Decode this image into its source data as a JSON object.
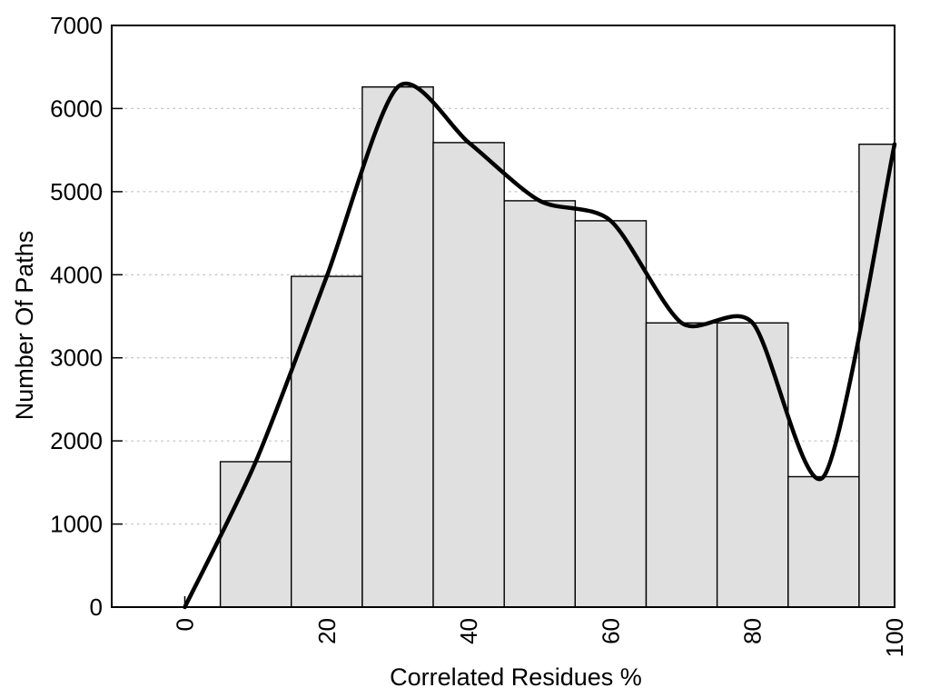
{
  "chart_data": {
    "type": "bar",
    "subtype": "histogram-with-smooth-curve",
    "title": "",
    "xlabel": "Correlated Residues %",
    "ylabel": "Number Of Paths",
    "xlim": [
      -10.3,
      100
    ],
    "ylim": [
      0,
      7000
    ],
    "xticks": [
      0,
      20,
      40,
      60,
      80,
      100
    ],
    "yticks": [
      0,
      1000,
      2000,
      3000,
      4000,
      5000,
      6000,
      7000
    ],
    "grid": "horizontal-dotted-at-yticks",
    "legend": null,
    "bars": {
      "bins": [
        [
          5,
          15
        ],
        [
          15,
          25
        ],
        [
          25,
          35
        ],
        [
          35,
          45
        ],
        [
          45,
          55
        ],
        [
          55,
          65
        ],
        [
          65,
          75
        ],
        [
          75,
          85
        ],
        [
          85,
          95
        ],
        [
          95,
          100
        ]
      ],
      "values": [
        1750,
        3980,
        6260,
        5590,
        4890,
        4650,
        3420,
        3420,
        1570,
        5570
      ],
      "fill_color": "#e0e0e0",
      "stroke_color": "#000000"
    },
    "series": [
      {
        "name": "smoothed-frequency-curve",
        "type": "line",
        "color": "#000000",
        "points": [
          [
            0,
            0
          ],
          [
            10,
            1750
          ],
          [
            20,
            3980
          ],
          [
            30,
            6260
          ],
          [
            40,
            5590
          ],
          [
            50,
            4890
          ],
          [
            60,
            4650
          ],
          [
            70,
            3420
          ],
          [
            80,
            3420
          ],
          [
            90,
            1570
          ],
          [
            100,
            5570
          ]
        ]
      }
    ],
    "colors": {
      "axis": "#000000",
      "gridline": "#c4c4c4",
      "text": "#000000",
      "background": "#ffffff"
    }
  }
}
